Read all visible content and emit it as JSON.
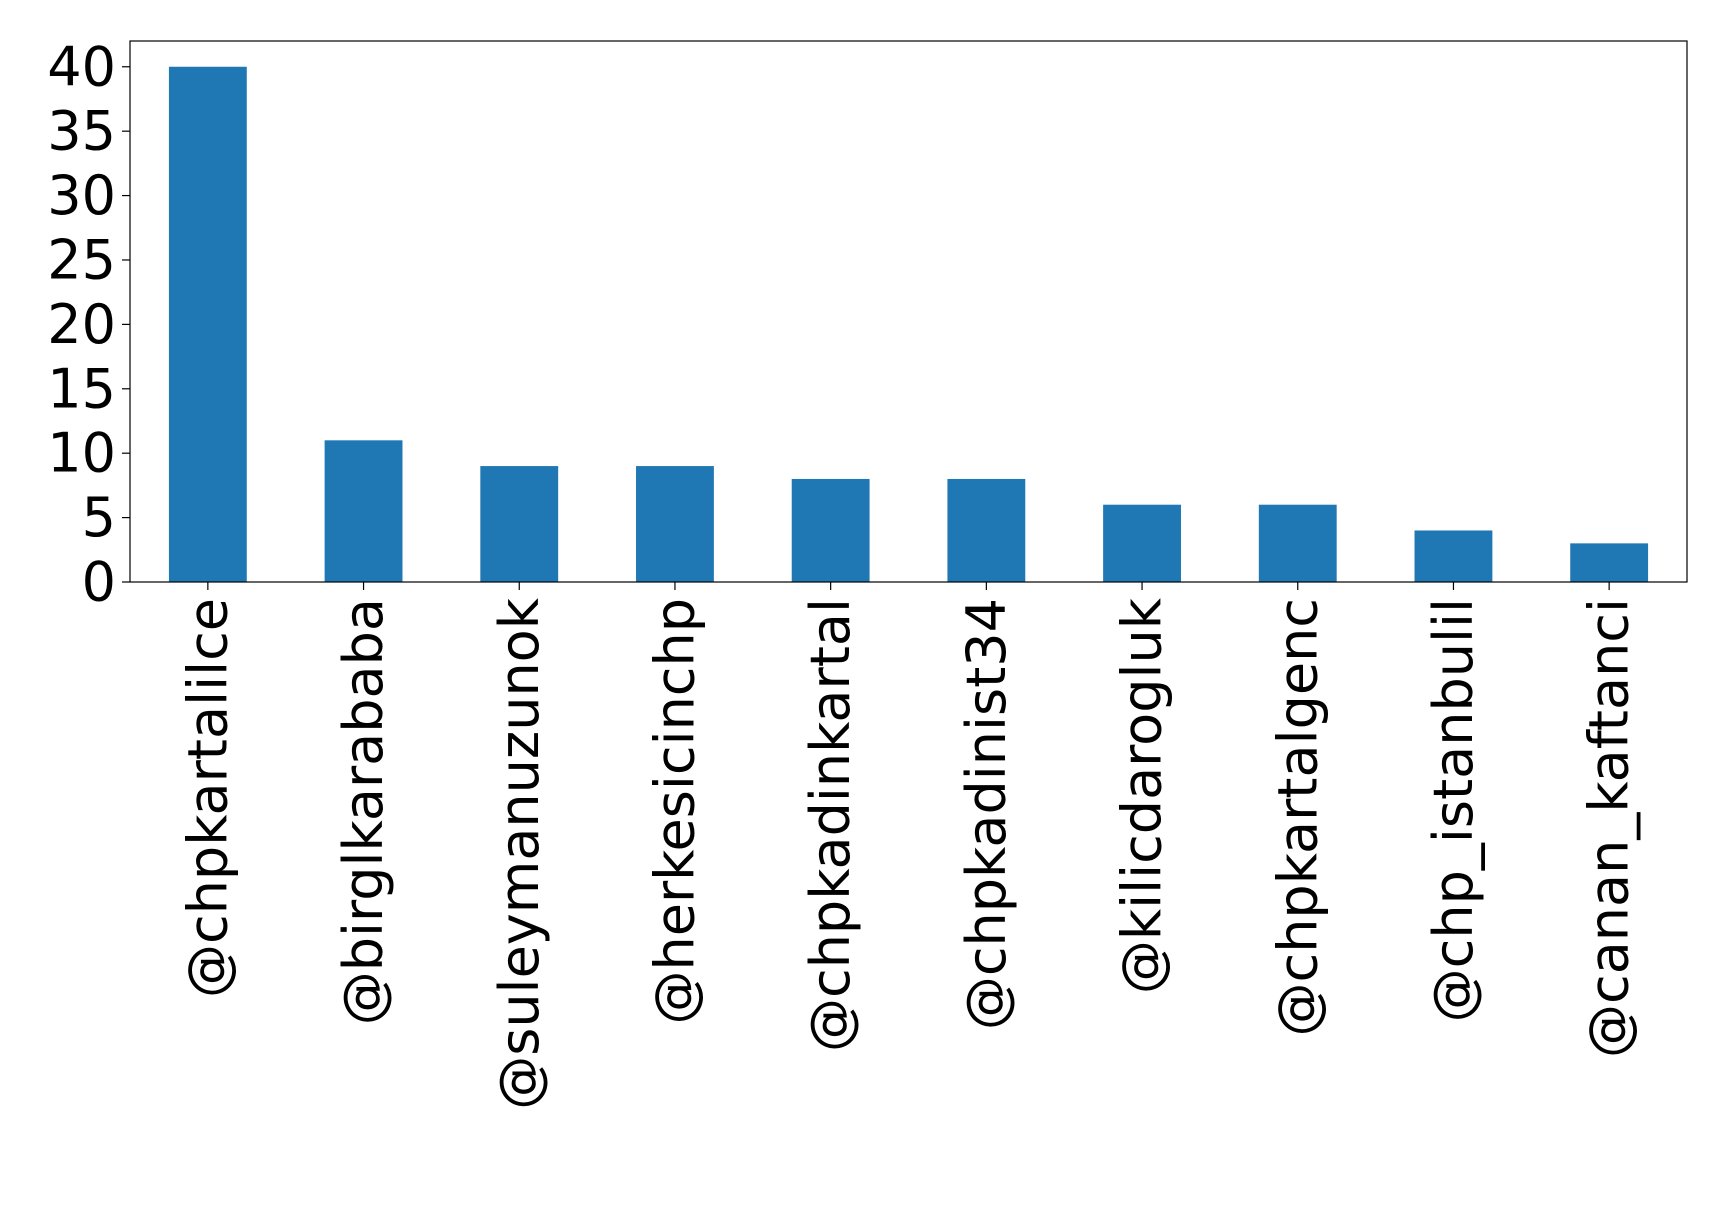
{
  "chart_data": {
    "type": "bar",
    "title": "",
    "xlabel": "",
    "ylabel": "",
    "categories": [
      "@chpkartalilce",
      "@birglkarababa",
      "@suleymanuzunok",
      "@herkesicinchp",
      "@chpkadinkartal",
      "@chpkadinist34",
      "@kilicdarogluk",
      "@chpkartalgenc",
      "@chp_istanbulil",
      "@canan_kaftanci"
    ],
    "values": [
      40,
      11,
      9,
      9,
      8,
      8,
      6,
      6,
      4,
      3
    ],
    "ylim": [
      0,
      42
    ],
    "yticks": [
      0,
      5,
      10,
      15,
      20,
      25,
      30,
      35,
      40
    ],
    "grid": false,
    "legend": "none",
    "bar_color": "#1f77b4"
  }
}
